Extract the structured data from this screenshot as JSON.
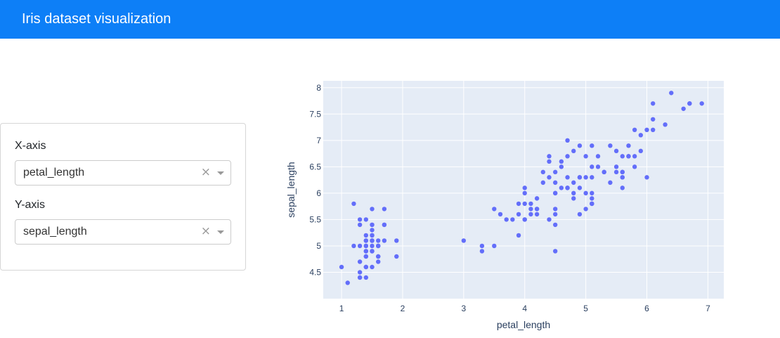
{
  "header": {
    "title": "Iris dataset visualization"
  },
  "controls": {
    "x_label": "X-axis",
    "x_value": "petal_length",
    "y_label": "Y-axis",
    "y_value": "sepal_length",
    "clear_glyph": "×"
  },
  "colors": {
    "navbar": "#0d7ff7",
    "plot_bg": "#e5ecf6",
    "marker": "#636efa",
    "axis_text": "#2a3f5f"
  },
  "icons": {
    "clear": "clear-icon",
    "dropdown": "chevron-down-icon"
  },
  "chart_data": {
    "type": "scatter",
    "xlabel": "petal_length",
    "ylabel": "sepal_length",
    "xlim": [
      0.7,
      7.26
    ],
    "ylim": [
      4.0,
      8.13
    ],
    "xticks": [
      1,
      2,
      3,
      4,
      5,
      6,
      7
    ],
    "yticks": [
      4.5,
      5,
      5.5,
      6,
      6.5,
      7,
      7.5,
      8
    ],
    "ytick_labels": [
      "4.5",
      "5",
      "5.5",
      "6",
      "6.5",
      "7",
      "7.5",
      "8"
    ],
    "grid": true,
    "series": [
      {
        "x": [
          1.4,
          1.4,
          1.3,
          1.5,
          1.4,
          1.7,
          1.4,
          1.5,
          1.4,
          1.5,
          1.5,
          1.6,
          1.4,
          1.1,
          1.2,
          1.5,
          1.3,
          1.4,
          1.7,
          1.5,
          1.7,
          1.5,
          1.0,
          1.7,
          1.9,
          1.6,
          1.6,
          1.5,
          1.4,
          1.6,
          1.6,
          1.5,
          1.5,
          1.4,
          1.5,
          1.2,
          1.3,
          1.4,
          1.3,
          1.5,
          1.3,
          1.3,
          1.3,
          1.6,
          1.9,
          1.4,
          1.6,
          1.4,
          1.5,
          1.4,
          4.7,
          4.5,
          4.9,
          4.0,
          4.6,
          4.5,
          4.7,
          3.3,
          4.6,
          3.9,
          3.5,
          4.2,
          4.0,
          4.7,
          3.6,
          4.4,
          4.5,
          4.1,
          4.5,
          3.9,
          4.8,
          4.0,
          4.9,
          4.7,
          4.3,
          4.4,
          4.8,
          5.0,
          4.5,
          3.5,
          3.8,
          3.7,
          3.9,
          5.1,
          4.5,
          4.5,
          4.7,
          4.4,
          4.1,
          4.0,
          4.4,
          4.6,
          4.0,
          3.3,
          4.2,
          4.2,
          4.2,
          4.3,
          3.0,
          4.1,
          6.0,
          5.1,
          5.9,
          5.6,
          5.8,
          6.6,
          4.5,
          6.3,
          5.8,
          6.1,
          5.1,
          5.3,
          5.5,
          5.0,
          5.1,
          5.3,
          5.5,
          6.7,
          6.9,
          5.0,
          5.7,
          4.9,
          6.7,
          4.9,
          5.7,
          6.0,
          4.8,
          4.9,
          5.6,
          5.8,
          6.1,
          6.4,
          5.6,
          5.1,
          5.6,
          6.1,
          5.6,
          5.5,
          4.8,
          5.4,
          5.6,
          5.1,
          5.1,
          5.9,
          5.7,
          5.2,
          5.0,
          5.2,
          5.4,
          5.1
        ],
        "y": [
          5.1,
          4.9,
          4.7,
          4.6,
          5.0,
          5.4,
          4.6,
          5.0,
          4.4,
          4.9,
          5.4,
          4.8,
          4.8,
          4.3,
          5.8,
          5.7,
          5.4,
          5.1,
          5.7,
          5.1,
          5.4,
          5.1,
          4.6,
          5.1,
          4.8,
          5.0,
          5.0,
          5.2,
          5.2,
          4.7,
          4.8,
          5.4,
          5.2,
          5.5,
          4.9,
          5.0,
          5.5,
          4.9,
          4.4,
          5.1,
          5.0,
          4.5,
          4.4,
          5.0,
          5.1,
          4.8,
          5.1,
          4.6,
          5.3,
          5.0,
          7.0,
          6.4,
          6.9,
          5.5,
          6.5,
          5.7,
          6.3,
          4.9,
          6.6,
          5.2,
          5.0,
          5.9,
          6.0,
          6.1,
          5.6,
          6.7,
          5.6,
          5.8,
          6.2,
          5.6,
          5.9,
          6.1,
          6.3,
          6.1,
          6.4,
          6.6,
          6.8,
          6.7,
          6.0,
          5.7,
          5.5,
          5.5,
          5.8,
          6.0,
          5.4,
          6.0,
          6.7,
          6.3,
          5.6,
          5.5,
          5.5,
          6.1,
          5.8,
          5.0,
          5.6,
          5.7,
          5.7,
          6.2,
          5.1,
          5.7,
          6.3,
          5.8,
          7.1,
          6.3,
          6.5,
          7.6,
          4.9,
          7.3,
          6.7,
          7.2,
          6.5,
          6.4,
          6.8,
          5.7,
          5.8,
          6.4,
          6.5,
          7.7,
          7.7,
          6.0,
          6.9,
          5.6,
          7.7,
          6.3,
          6.7,
          7.2,
          6.2,
          6.1,
          6.4,
          7.2,
          7.4,
          7.9,
          6.4,
          6.3,
          6.1,
          7.7,
          6.3,
          6.4,
          6.0,
          6.9,
          6.7,
          6.9,
          5.8,
          6.8,
          6.7,
          6.7,
          6.3,
          6.5,
          6.2,
          5.9
        ]
      }
    ]
  }
}
